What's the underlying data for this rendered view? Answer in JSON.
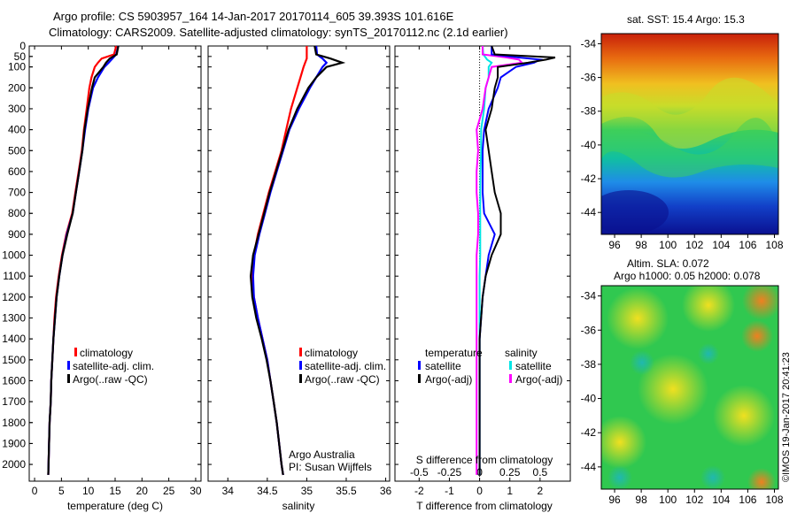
{
  "titles": {
    "line1": "Argo profile: CS 5903957_164 14-Jan-2017 20170114_605 39.393S 101.616E",
    "line2": "Climatology: CARS2009. Satellite-adjusted climatology: synTS_20170112.nc (2.1d earlier)"
  },
  "credits": {
    "institution": "Argo Australia",
    "pi": "PI: Susan Wijffels",
    "stamp": "©IMOS 19-Jan-2017 20:41:23"
  },
  "map_labels": {
    "sst": "sat. SST: 15.4 Argo: 15.3",
    "sla": "Altim. SLA: 0.072",
    "height": "Argo h1000: 0.05 h2000: 0.078"
  },
  "colors": {
    "climatology": "#ff0000",
    "satellite": "#0000ff",
    "argo": "#000000",
    "sal_satellite": "#00e5e5",
    "sal_argo": "#ff00ff"
  },
  "chart_data": [
    {
      "type": "line",
      "id": "temperature",
      "xlabel": "temperature (deg C)",
      "ylabel": "",
      "xlim": [
        -1,
        31
      ],
      "ylim": [
        2080,
        0
      ],
      "xticks": [
        0,
        5,
        10,
        15,
        20,
        25,
        30
      ],
      "yticks": [
        0,
        50,
        100,
        200,
        300,
        400,
        500,
        600,
        700,
        800,
        900,
        1000,
        1100,
        1200,
        1300,
        1400,
        1500,
        1600,
        1700,
        1800,
        1900,
        2000
      ],
      "depth": [
        0,
        40,
        60,
        80,
        100,
        150,
        200,
        300,
        400,
        500,
        600,
        700,
        800,
        900,
        1000,
        1100,
        1200,
        1300,
        1400,
        1500,
        1600,
        1700,
        1800,
        1900,
        2000,
        2050
      ],
      "series": [
        {
          "name": "climatology",
          "values": [
            15.2,
            14.8,
            12.5,
            11.8,
            11.2,
            10.6,
            10.2,
            9.7,
            9.2,
            8.8,
            8.2,
            7.6,
            7.0,
            5.9,
            5.1,
            4.5,
            4.0,
            3.7,
            3.5,
            3.3,
            3.1,
            3.0,
            2.8,
            2.7,
            2.6,
            2.55
          ]
        },
        {
          "name": "satellite-adj. clim.",
          "values": [
            15.6,
            15.2,
            14.5,
            13.8,
            13.0,
            11.8,
            10.9,
            10.0,
            9.4,
            8.9,
            8.3,
            7.7,
            7.1,
            6.0,
            5.2,
            4.6,
            4.1,
            3.8,
            3.5,
            3.3,
            3.1,
            3.0,
            2.8,
            2.7,
            2.6,
            2.55
          ]
        },
        {
          "name": "Argo(..raw -QC)",
          "values": [
            15.6,
            15.3,
            14.0,
            13.3,
            12.8,
            11.2,
            10.7,
            9.9,
            9.3,
            8.9,
            8.3,
            7.7,
            7.1,
            6.1,
            5.2,
            4.6,
            4.1,
            3.8,
            3.5,
            3.3,
            3.1,
            3.0,
            2.8,
            2.7,
            2.6,
            2.55
          ]
        }
      ],
      "legend": [
        "climatology",
        "satellite-adj. clim.",
        "Argo(..raw -QC)"
      ]
    },
    {
      "type": "line",
      "id": "salinity",
      "xlabel": "salinity",
      "ylabel": "",
      "xlim": [
        33.75,
        36.05
      ],
      "ylim": [
        2080,
        0
      ],
      "xticks": [
        34,
        34.5,
        35,
        35.5,
        36
      ],
      "xticklabels": [
        "34",
        "34.5",
        "35",
        "35.5",
        "36"
      ],
      "depth": [
        0,
        40,
        60,
        80,
        100,
        150,
        200,
        300,
        400,
        500,
        600,
        700,
        800,
        900,
        1000,
        1100,
        1200,
        1300,
        1400,
        1500,
        1600,
        1700,
        1800,
        1900,
        2000,
        2050
      ],
      "series": [
        {
          "name": "climatology",
          "values": [
            35.0,
            35.0,
            35.0,
            34.98,
            34.96,
            34.92,
            34.88,
            34.8,
            34.74,
            34.68,
            34.6,
            34.52,
            34.45,
            34.38,
            34.33,
            34.31,
            34.33,
            34.38,
            34.44,
            34.5,
            34.54,
            34.58,
            34.62,
            34.65,
            34.68,
            34.7
          ]
        },
        {
          "name": "satellite-adj. clim.",
          "values": [
            35.12,
            35.13,
            35.2,
            35.25,
            35.2,
            35.12,
            35.04,
            34.9,
            34.78,
            34.7,
            34.62,
            34.54,
            34.47,
            34.4,
            34.34,
            34.32,
            34.33,
            34.38,
            34.44,
            34.5,
            34.54,
            34.58,
            34.62,
            34.65,
            34.68,
            34.7
          ]
        },
        {
          "name": "Argo(..raw -QC)",
          "values": [
            35.1,
            35.12,
            35.3,
            35.45,
            35.25,
            35.12,
            35.02,
            34.88,
            34.77,
            34.69,
            34.61,
            34.53,
            34.46,
            34.39,
            34.32,
            34.29,
            34.31,
            34.36,
            34.43,
            34.49,
            34.54,
            34.58,
            34.62,
            34.65,
            34.68,
            34.7
          ]
        }
      ],
      "legend": [
        "climatology",
        "satellite-adj. clim.",
        "Argo(..raw -QC)"
      ]
    },
    {
      "type": "line",
      "id": "differences",
      "xlabel": "T difference from climatology",
      "xlabel_top": "S difference from climatology",
      "xlim": [
        -2.8,
        3.0
      ],
      "ylim": [
        2080,
        0
      ],
      "xticks": [
        -2,
        -1,
        0,
        1,
        2
      ],
      "s_ticks": [
        -0.5,
        -0.25,
        0,
        0.25,
        0.5
      ],
      "s_ticklabels": [
        "-0.5",
        "-0.25",
        "0",
        "0.25",
        "0.5"
      ],
      "depth": [
        0,
        40,
        55,
        65,
        80,
        100,
        150,
        200,
        300,
        400,
        500,
        600,
        700,
        800,
        900,
        1000,
        1100,
        1200,
        1300,
        1400,
        1500,
        1600,
        1700,
        1800,
        1900,
        2000,
        2050
      ],
      "series": [
        {
          "name": "temperature satellite",
          "values": [
            0.4,
            0.4,
            1.3,
            2.0,
            1.8,
            1.2,
            0.7,
            0.6,
            0.3,
            0.15,
            0.1,
            0.1,
            0.1,
            0.15,
            0.5,
            0.3,
            0.2,
            0.1,
            0.05,
            0.0,
            0.0,
            0.0,
            0.0,
            0.0,
            0.0,
            0.0,
            0.0
          ]
        },
        {
          "name": "temperature Argo(-adj)",
          "values": [
            0.4,
            0.5,
            2.5,
            2.2,
            1.6,
            0.6,
            0.6,
            0.5,
            0.4,
            0.2,
            0.3,
            0.4,
            0.5,
            0.7,
            0.7,
            0.4,
            0.2,
            0.1,
            0.05,
            0.0,
            0.0,
            0.0,
            0.0,
            0.0,
            0.0,
            0.0,
            0.0
          ]
        },
        {
          "name": "salinity satellite",
          "values": [
            0.1,
            0.12,
            0.2,
            0.25,
            0.4,
            0.3,
            0.3,
            0.2,
            0.15,
            0.05,
            0.05,
            0.03,
            0.02,
            0.02,
            0.02,
            0.02,
            0.0,
            0.0,
            0.0,
            0.0,
            0.0,
            0.0,
            0.0,
            0.0,
            0.0,
            0.0,
            0.0
          ]
        },
        {
          "name": "salinity Argo(-adj)",
          "values": [
            0.1,
            0.1,
            0.9,
            1.3,
            1.4,
            0.4,
            0.3,
            0.2,
            0.1,
            -0.1,
            -0.05,
            -0.1,
            -0.1,
            -0.05,
            -0.05,
            -0.1,
            -0.1,
            -0.1,
            -0.1,
            -0.1,
            -0.1,
            -0.1,
            -0.1,
            -0.1,
            -0.1,
            -0.1,
            -0.1
          ]
        }
      ],
      "legend_headers": [
        "temperature",
        "salinity"
      ],
      "legend": [
        "satellite",
        "Argo(-adj)",
        "satellite",
        "Argo(-adj)"
      ]
    },
    {
      "type": "heatmap",
      "id": "sst_map",
      "xlim": [
        95,
        108.3
      ],
      "ylim": [
        -45.3,
        -33.4
      ],
      "xticks": [
        96,
        98,
        100,
        102,
        104,
        106,
        108
      ],
      "yticks": [
        -34,
        -36,
        -38,
        -40,
        -42,
        -44
      ]
    },
    {
      "type": "heatmap",
      "id": "sla_map",
      "xlim": [
        95,
        108.3
      ],
      "ylim": [
        -45.3,
        -33.4
      ],
      "xticks": [
        96,
        98,
        100,
        102,
        104,
        106,
        108
      ],
      "yticks": [
        -34,
        -36,
        -38,
        -40,
        -42,
        -44
      ]
    }
  ]
}
